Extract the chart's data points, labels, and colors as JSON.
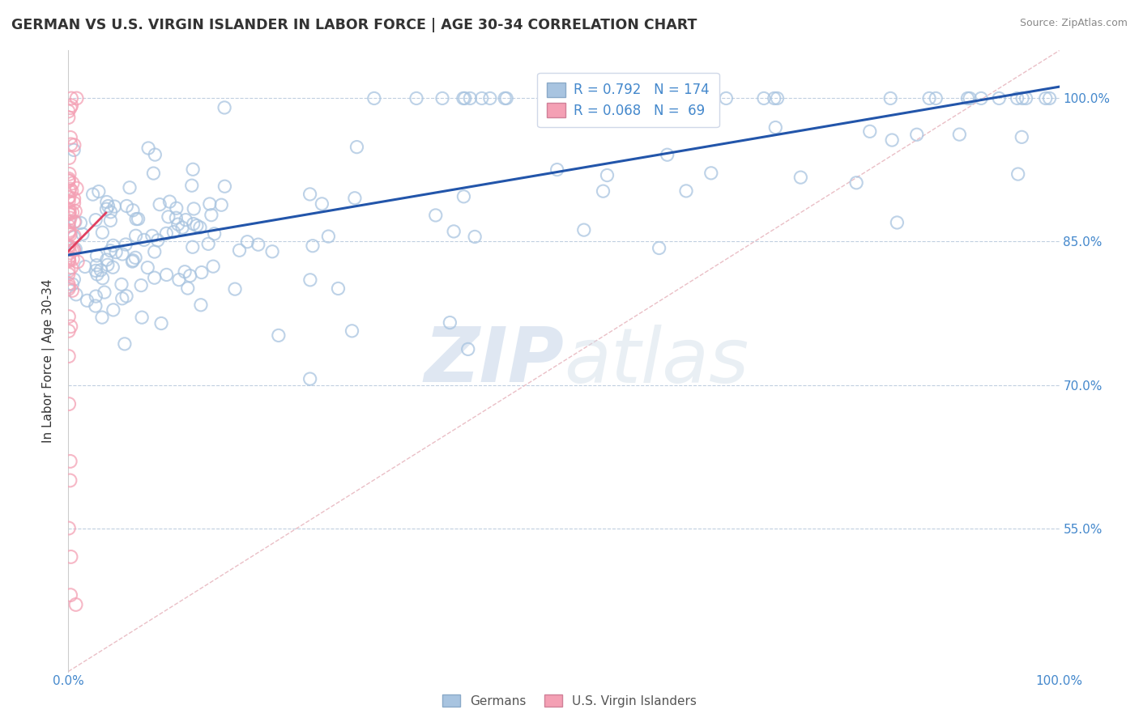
{
  "title": "GERMAN VS U.S. VIRGIN ISLANDER IN LABOR FORCE | AGE 30-34 CORRELATION CHART",
  "source": "Source: ZipAtlas.com",
  "ylabel": "In Labor Force | Age 30-34",
  "x_min": 0.0,
  "x_max": 1.0,
  "y_min": 0.4,
  "y_max": 1.05,
  "y_ticks": [
    0.55,
    0.7,
    0.85,
    1.0
  ],
  "y_tick_labels": [
    "55.0%",
    "70.0%",
    "85.0%",
    "100.0%"
  ],
  "x_tick_labels": [
    "0.0%",
    "100.0%"
  ],
  "blue_R": 0.792,
  "blue_N": 174,
  "pink_R": 0.068,
  "pink_N": 69,
  "blue_color": "#a8c4e0",
  "pink_color": "#f4a0b4",
  "blue_line_color": "#2255aa",
  "pink_line_color": "#e04060",
  "legend_blue_label": "Germans",
  "legend_pink_label": "U.S. Virgin Islanders",
  "watermark_zip": "ZIP",
  "watermark_atlas": "atlas",
  "background_color": "#ffffff",
  "grid_color": "#c0cfe0",
  "title_color": "#333333",
  "axis_label_color": "#333333",
  "right_tick_color": "#4488cc",
  "diag_line_color": "#e8b8c0"
}
